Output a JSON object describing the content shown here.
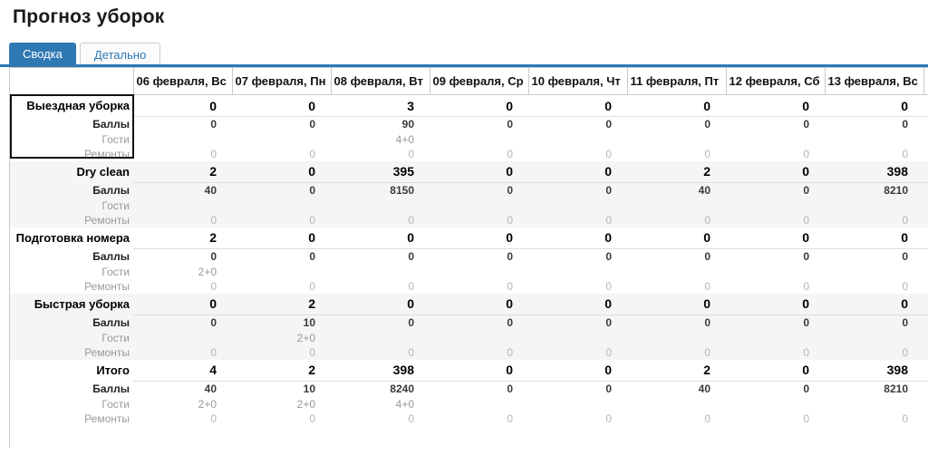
{
  "page": {
    "title": "Прогноз уборок"
  },
  "colors": {
    "accent": "#2e78b4"
  },
  "tabs": [
    {
      "label": "Сводка",
      "active": true
    },
    {
      "label": "Детально",
      "active": false
    }
  ],
  "table": {
    "columns": [
      "06 февраля, Вс",
      "07 февраля, Пн",
      "08 февраля, Вт",
      "09 февраля, Ср",
      "10 февраля, Чт",
      "11 февраля, Пт",
      "12 февраля, Сб",
      "13 февраля, Вс"
    ],
    "groups": [
      {
        "label": "Выездная уборка",
        "selected": true,
        "values": [
          "0",
          "0",
          "3",
          "0",
          "0",
          "0",
          "0",
          "0"
        ],
        "sub_rows": [
          {
            "label": "Баллы",
            "style": "bold",
            "values": [
              "0",
              "0",
              "90",
              "0",
              "0",
              "0",
              "0",
              "0"
            ]
          },
          {
            "label": "Гости",
            "style": "muted",
            "values": [
              "",
              "",
              "4+0",
              "",
              "",
              "",
              "",
              ""
            ]
          },
          {
            "label": "Ремонты",
            "style": "faint",
            "values": [
              "0",
              "0",
              "0",
              "0",
              "0",
              "0",
              "0",
              "0"
            ]
          }
        ]
      },
      {
        "label": "Dry clean",
        "selected": false,
        "values": [
          "2",
          "0",
          "395",
          "0",
          "0",
          "2",
          "0",
          "398"
        ],
        "sub_rows": [
          {
            "label": "Баллы",
            "style": "bold",
            "values": [
              "40",
              "0",
              "8150",
              "0",
              "0",
              "40",
              "0",
              "8210"
            ]
          },
          {
            "label": "Гости",
            "style": "muted",
            "values": [
              "",
              "",
              "",
              "",
              "",
              "",
              "",
              ""
            ]
          },
          {
            "label": "Ремонты",
            "style": "faint",
            "values": [
              "0",
              "0",
              "0",
              "0",
              "0",
              "0",
              "0",
              "0"
            ]
          }
        ]
      },
      {
        "label": "Подготовка номера",
        "selected": false,
        "values": [
          "2",
          "0",
          "0",
          "0",
          "0",
          "0",
          "0",
          "0"
        ],
        "sub_rows": [
          {
            "label": "Баллы",
            "style": "bold",
            "values": [
              "0",
              "0",
              "0",
              "0",
              "0",
              "0",
              "0",
              "0"
            ]
          },
          {
            "label": "Гости",
            "style": "muted",
            "values": [
              "2+0",
              "",
              "",
              "",
              "",
              "",
              "",
              ""
            ]
          },
          {
            "label": "Ремонты",
            "style": "faint",
            "values": [
              "0",
              "0",
              "0",
              "0",
              "0",
              "0",
              "0",
              "0"
            ]
          }
        ]
      },
      {
        "label": "Быстрая уборка",
        "selected": false,
        "values": [
          "0",
          "2",
          "0",
          "0",
          "0",
          "0",
          "0",
          "0"
        ],
        "sub_rows": [
          {
            "label": "Баллы",
            "style": "bold",
            "values": [
              "0",
              "10",
              "0",
              "0",
              "0",
              "0",
              "0",
              "0"
            ]
          },
          {
            "label": "Гости",
            "style": "muted",
            "values": [
              "",
              "2+0",
              "",
              "",
              "",
              "",
              "",
              ""
            ]
          },
          {
            "label": "Ремонты",
            "style": "faint",
            "values": [
              "0",
              "0",
              "0",
              "0",
              "0",
              "0",
              "0",
              "0"
            ]
          }
        ]
      },
      {
        "label": "Итого",
        "selected": false,
        "values": [
          "4",
          "2",
          "398",
          "0",
          "0",
          "2",
          "0",
          "398"
        ],
        "sub_rows": [
          {
            "label": "Баллы",
            "style": "bold",
            "values": [
              "40",
              "10",
              "8240",
              "0",
              "0",
              "40",
              "0",
              "8210"
            ]
          },
          {
            "label": "Гости",
            "style": "muted",
            "values": [
              "2+0",
              "2+0",
              "4+0",
              "",
              "",
              "",
              "",
              ""
            ]
          },
          {
            "label": "Ремонты",
            "style": "faint",
            "values": [
              "0",
              "0",
              "0",
              "0",
              "0",
              "0",
              "0",
              "0"
            ]
          }
        ]
      }
    ]
  }
}
